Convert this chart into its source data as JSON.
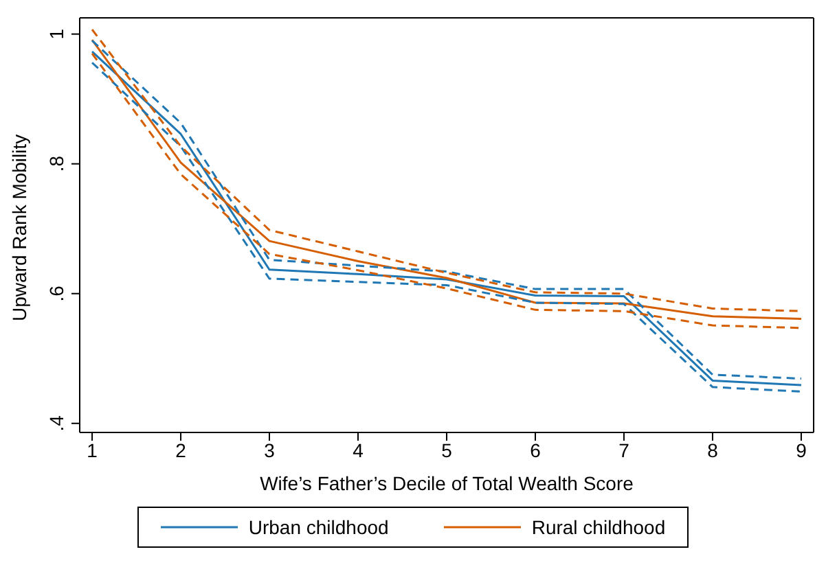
{
  "chart_data": {
    "type": "line",
    "xlabel": "Wife’s Father’s Decile of Total Wealth Score",
    "ylabel": "Upward Rank Mobility",
    "x": [
      1,
      2,
      3,
      4,
      5,
      6,
      7,
      8,
      9
    ],
    "xlim": [
      0.86,
      9.14
    ],
    "xticks": [
      1,
      2,
      3,
      4,
      5,
      6,
      7,
      8,
      9
    ],
    "ylim": [
      0.386,
      1.025
    ],
    "yticks": [
      {
        "value": 0.4,
        "label": ".4"
      },
      {
        "value": 0.6,
        "label": ".6"
      },
      {
        "value": 0.8,
        "label": ".8"
      },
      {
        "value": 1,
        "label": "1"
      }
    ],
    "grid": false,
    "legend": "bottom",
    "line_style": "solid",
    "series": [
      {
        "name": "Urban childhood",
        "color": "#1f77b4",
        "values": [
          0.973,
          0.846,
          0.637,
          0.63,
          0.622,
          0.597,
          0.596,
          0.466,
          0.459
        ]
      },
      {
        "name": "Rural childhood",
        "color": "#d55e00",
        "values": [
          0.991,
          0.802,
          0.681,
          0.65,
          0.624,
          0.586,
          0.585,
          0.565,
          0.561
        ]
      },
      {
        "color": "#1f77b4",
        "line_style": "dashed",
        "values": [
          0.956,
          0.827,
          0.623,
          0.618,
          0.613,
          0.586,
          0.584,
          0.456,
          0.449
        ]
      },
      {
        "color": "#1f77b4",
        "line_style": "dashed",
        "values": [
          0.99,
          0.863,
          0.652,
          0.643,
          0.634,
          0.607,
          0.607,
          0.475,
          0.469
        ]
      },
      {
        "color": "#d55e00",
        "line_style": "dashed",
        "values": [
          0.97,
          0.784,
          0.661,
          0.636,
          0.608,
          0.575,
          0.573,
          0.551,
          0.547
        ]
      },
      {
        "color": "#d55e00",
        "line_style": "dashed",
        "values": [
          1.007,
          0.827,
          0.698,
          0.665,
          0.632,
          0.602,
          0.6,
          0.577,
          0.573
        ]
      }
    ]
  }
}
